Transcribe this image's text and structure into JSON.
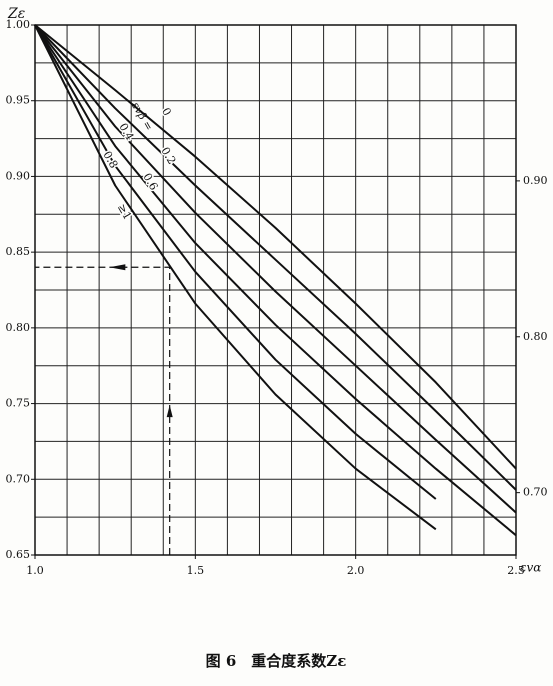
{
  "chart_data": {
    "type": "line",
    "caption": "图 6　重合度系数Zε",
    "y_label": "Zε",
    "x_label": "εvα",
    "legend_title": "εvβ =",
    "x": [
      1.0,
      1.25,
      1.5,
      1.75,
      2.0,
      2.25,
      2.5
    ],
    "series": [
      {
        "name": "0",
        "color": "#111111",
        "values": [
          1.0,
          0.957,
          0.913,
          0.866,
          0.816,
          0.764,
          0.707
        ]
      },
      {
        "name": "0.2",
        "color": "#111111",
        "values": [
          1.0,
          0.945,
          0.894,
          0.845,
          0.796,
          0.745,
          0.693
        ]
      },
      {
        "name": "0.4",
        "color": "#111111",
        "values": [
          1.0,
          0.933,
          0.876,
          0.824,
          0.775,
          0.726,
          0.678
        ]
      },
      {
        "name": "0.6",
        "color": "#111111",
        "values": [
          1.0,
          0.92,
          0.856,
          0.802,
          0.753,
          0.707,
          0.663
        ]
      },
      {
        "name": "0.8",
        "color": "#111111",
        "values": [
          1.0,
          0.907,
          0.837,
          0.779,
          0.73,
          0.687,
          null
        ]
      },
      {
        "name": "≥1",
        "color": "#111111",
        "values": [
          1.0,
          0.894,
          0.816,
          0.756,
          0.707,
          0.667,
          null
        ]
      }
    ],
    "xlim": [
      1.0,
      2.5
    ],
    "ylim": [
      0.65,
      1.0
    ],
    "y2lim": [
      0.66,
      1.0
    ],
    "xticks": [
      {
        "value": 1.0,
        "label": "1.0"
      },
      {
        "value": 1.5,
        "label": "1.5"
      },
      {
        "value": 2.0,
        "label": "2.0"
      },
      {
        "value": 2.5,
        "label": "2.5"
      }
    ],
    "yticks": [
      {
        "value": 0.65,
        "label": "0.65"
      },
      {
        "value": 0.7,
        "label": "0.70"
      },
      {
        "value": 0.75,
        "label": "0.75"
      },
      {
        "value": 0.8,
        "label": "0.80"
      },
      {
        "value": 0.85,
        "label": "0.85"
      },
      {
        "value": 0.9,
        "label": "0.90"
      },
      {
        "value": 0.95,
        "label": "0.95"
      },
      {
        "value": 1.0,
        "label": "1.00"
      }
    ],
    "y2ticks": [
      {
        "value": 0.7,
        "label": "0.70"
      },
      {
        "value": 0.8,
        "label": "0.80"
      },
      {
        "value": 0.9,
        "label": "0.90"
      }
    ],
    "xgrid": [
      1.0,
      1.1,
      1.2,
      1.3,
      1.4,
      1.5,
      1.6,
      1.7,
      1.8,
      1.9,
      2.0,
      2.1,
      2.2,
      2.3,
      2.4,
      2.5
    ],
    "ygrid": [
      0.65,
      0.675,
      0.7,
      0.725,
      0.75,
      0.775,
      0.8,
      0.825,
      0.85,
      0.875,
      0.9,
      0.925,
      0.95,
      0.975,
      1.0
    ],
    "guide": {
      "x": 1.42,
      "y": 0.84
    },
    "grid": true
  }
}
